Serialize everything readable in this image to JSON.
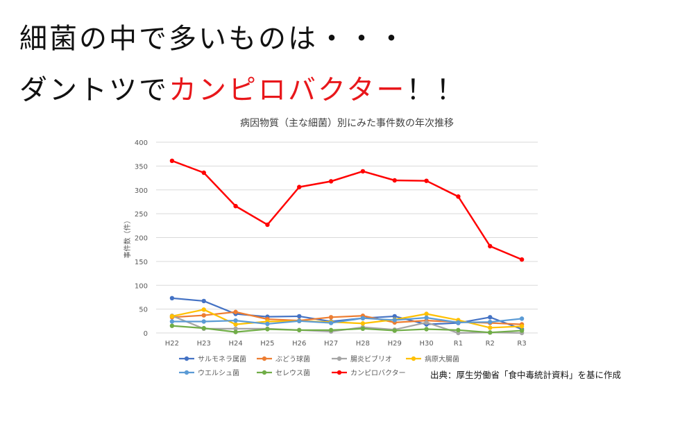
{
  "headline": {
    "line1": "細菌の中で多いものは・・・",
    "line2_prefix": "ダントツで",
    "line2_highlight": "カンピロバクター",
    "line2_suffix": "！！"
  },
  "source": "出典：厚生労働省「食中毒統計資料」を基に作成",
  "colors": {
    "highlight": "#e8171b",
    "grid": "#d9d9d9",
    "axis_text": "#595959"
  },
  "chart_data": {
    "type": "line",
    "title": "病因物質（主な細菌）別にみた事件数の年次推移",
    "ylabel": "事件数（件）",
    "xlabel": "",
    "ylim": [
      0,
      400
    ],
    "yticks": [
      0,
      50,
      100,
      150,
      200,
      250,
      300,
      350,
      400
    ],
    "grid": true,
    "legend_position": "bottom",
    "categories": [
      "H22",
      "H23",
      "H24",
      "H25",
      "H26",
      "H27",
      "H28",
      "H29",
      "H30",
      "R1",
      "R2",
      "R3"
    ],
    "series": [
      {
        "name": "サルモネラ属菌",
        "color": "#4472c4",
        "values": [
          73,
          67,
          40,
          34,
          35,
          24,
          31,
          35,
          18,
          21,
          33,
          8
        ]
      },
      {
        "name": "ぶどう球菌",
        "color": "#ed7d31",
        "values": [
          33,
          37,
          44,
          29,
          26,
          33,
          36,
          22,
          26,
          23,
          21,
          18
        ]
      },
      {
        "name": "腸炎ビブリオ",
        "color": "#a5a5a5",
        "values": [
          36,
          9,
          9,
          9,
          6,
          3,
          12,
          7,
          22,
          0,
          1,
          0
        ]
      },
      {
        "name": "病原大腸菌",
        "color": "#ffc000",
        "values": [
          35,
          49,
          18,
          24,
          25,
          23,
          20,
          28,
          40,
          27,
          11,
          14
        ]
      },
      {
        "name": "ウエルシュ菌",
        "color": "#5b9bd5",
        "values": [
          24,
          24,
          26,
          19,
          25,
          21,
          31,
          27,
          32,
          22,
          23,
          30
        ]
      },
      {
        "name": "セレウス菌",
        "color": "#70ad47",
        "values": [
          15,
          10,
          2,
          8,
          6,
          6,
          9,
          5,
          8,
          6,
          1,
          5
        ]
      },
      {
        "name": "カンピロバクター",
        "color": "#ff0000",
        "values": [
          361,
          336,
          266,
          227,
          306,
          318,
          339,
          320,
          319,
          286,
          182,
          154
        ]
      }
    ]
  }
}
